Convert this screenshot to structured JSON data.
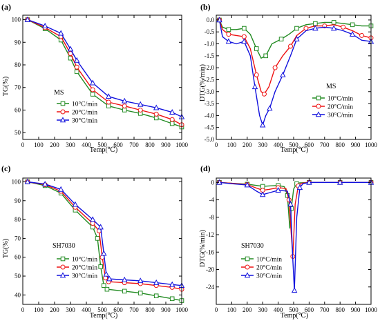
{
  "chart_data": [
    {
      "panel": "(a)",
      "type": "line",
      "sample_label": "MS",
      "xlabel": "Temp(℃)",
      "ylabel": "TG(%)",
      "xlim": [
        0,
        1000
      ],
      "ylim": [
        47,
        102
      ],
      "x_ticks": [
        0,
        100,
        200,
        300,
        400,
        500,
        600,
        700,
        800,
        900,
        1000
      ],
      "y_ticks": [
        50,
        60,
        70,
        80,
        90,
        100
      ],
      "legend": "center-left",
      "series": [
        {
          "name": "10°C/min",
          "color": "#228B22",
          "marker": "square",
          "x": [
            30,
            140,
            240,
            300,
            340,
            440,
            540,
            640,
            740,
            840,
            940,
            1000
          ],
          "y": [
            100,
            96,
            91,
            83,
            77,
            67,
            61.8,
            60,
            58.5,
            56.5,
            54,
            52.5
          ]
        },
        {
          "name": "20°C/min",
          "color": "#ee1111",
          "marker": "circle",
          "x": [
            30,
            140,
            240,
            300,
            340,
            440,
            540,
            640,
            740,
            840,
            940,
            1000
          ],
          "y": [
            100,
            96.5,
            92.5,
            85,
            79,
            69,
            63.5,
            61.8,
            60,
            58.2,
            55.8,
            53.5
          ]
        },
        {
          "name": "30°C/min",
          "color": "#1111dd",
          "marker": "triangle",
          "x": [
            30,
            140,
            240,
            300,
            340,
            440,
            540,
            640,
            740,
            840,
            940,
            1000
          ],
          "y": [
            100,
            97.2,
            94,
            87,
            82,
            72,
            66,
            64,
            62.5,
            61,
            59,
            57
          ]
        }
      ]
    },
    {
      "panel": "(b)",
      "type": "line",
      "sample_label": "MS",
      "xlabel": "Temp(℃)",
      "ylabel": "DTG(%/min)",
      "xlim": [
        0,
        1000
      ],
      "ylim": [
        -5.0,
        0.2
      ],
      "x_ticks": [
        0,
        100,
        200,
        300,
        400,
        500,
        600,
        700,
        800,
        900,
        1000
      ],
      "y_ticks": [
        0.0,
        -0.5,
        -1.0,
        -1.5,
        -2.0,
        -2.5,
        -3.0,
        -3.5,
        -4.0,
        -4.5,
        -5.0
      ],
      "legend": "center-right",
      "series": [
        {
          "name": "10°C/min",
          "color": "#228B22",
          "marker": "square",
          "x": [
            20,
            40,
            80,
            130,
            180,
            220,
            260,
            290,
            320,
            360,
            420,
            470,
            520,
            580,
            640,
            700,
            760,
            820,
            880,
            940,
            1000
          ],
          "y": [
            0,
            -0.3,
            -0.4,
            -0.4,
            -0.35,
            -0.6,
            -1.2,
            -1.6,
            -1.5,
            -1.0,
            -0.8,
            -0.6,
            -0.35,
            -0.2,
            -0.15,
            -0.1,
            -0.1,
            -0.15,
            -0.2,
            -0.25,
            -0.25
          ]
        },
        {
          "name": "20°C/min",
          "color": "#ee1111",
          "marker": "circle",
          "x": [
            20,
            40,
            80,
            130,
            180,
            220,
            260,
            290,
            310,
            340,
            380,
            430,
            480,
            520,
            580,
            640,
            700,
            760,
            820,
            880,
            940,
            1000
          ],
          "y": [
            0,
            -0.4,
            -0.6,
            -0.65,
            -0.7,
            -1.2,
            -2.3,
            -3.0,
            -3.1,
            -2.8,
            -2.0,
            -1.5,
            -1.1,
            -0.65,
            -0.35,
            -0.25,
            -0.25,
            -0.2,
            -0.3,
            -0.45,
            -0.65,
            -0.75
          ]
        },
        {
          "name": "30°C/min",
          "color": "#1111dd",
          "marker": "triangle",
          "x": [
            20,
            40,
            80,
            130,
            180,
            220,
            250,
            280,
            300,
            320,
            345,
            380,
            430,
            480,
            520,
            580,
            640,
            700,
            760,
            820,
            880,
            940,
            1000
          ],
          "y": [
            0,
            -0.7,
            -0.9,
            -1.0,
            -0.9,
            -1.5,
            -2.8,
            -4.0,
            -4.4,
            -4.0,
            -3.7,
            -3.0,
            -2.3,
            -1.5,
            -0.8,
            -0.45,
            -0.35,
            -0.3,
            -0.35,
            -0.45,
            -0.6,
            -0.85,
            -0.9
          ]
        }
      ]
    },
    {
      "panel": "(c)",
      "type": "line",
      "sample_label": "SH7030",
      "xlabel": "Temp(℃)",
      "ylabel": "TG(%)",
      "xlim": [
        0,
        1000
      ],
      "ylim": [
        35,
        102
      ],
      "x_ticks": [
        0,
        100,
        200,
        300,
        400,
        500,
        600,
        700,
        800,
        900,
        1000
      ],
      "y_ticks": [
        40,
        50,
        60,
        70,
        80,
        90,
        100
      ],
      "legend": "bottom-left",
      "series": [
        {
          "name": "10°C/min",
          "color": "#228B22",
          "marker": "square",
          "x": [
            30,
            140,
            240,
            330,
            440,
            470,
            490,
            510,
            530,
            640,
            740,
            840,
            940,
            1000
          ],
          "y": [
            100,
            98,
            94,
            85,
            76,
            70,
            55,
            45,
            43,
            42,
            41,
            39.5,
            38,
            37
          ]
        },
        {
          "name": "20°C/min",
          "color": "#ee1111",
          "marker": "circle",
          "x": [
            30,
            140,
            240,
            330,
            440,
            480,
            500,
            520,
            540,
            640,
            740,
            840,
            940,
            1000
          ],
          "y": [
            100,
            98.5,
            95,
            86.5,
            78,
            74,
            60,
            49,
            47,
            46.5,
            46,
            45,
            44,
            43
          ]
        },
        {
          "name": "30°C/min",
          "color": "#1111dd",
          "marker": "triangle",
          "x": [
            30,
            140,
            240,
            330,
            440,
            490,
            510,
            525,
            545,
            640,
            740,
            840,
            940,
            1000
          ],
          "y": [
            100,
            98.8,
            96,
            88,
            80,
            76,
            62,
            51,
            48.5,
            48,
            47.5,
            46.5,
            45.5,
            45
          ]
        }
      ]
    },
    {
      "panel": "(d)",
      "type": "line",
      "sample_label": "SH7030",
      "xlabel": "Temp(℃)",
      "ylabel": "DTG(%/min)",
      "xlim": [
        0,
        1000
      ],
      "ylim": [
        -28,
        1
      ],
      "x_ticks": [
        0,
        100,
        200,
        300,
        400,
        500,
        600,
        700,
        800,
        900,
        1000
      ],
      "y_ticks": [
        0,
        -4,
        -8,
        -12,
        -16,
        -20,
        -24
      ],
      "legend": "bottom-center",
      "series": [
        {
          "name": "10°C/min",
          "color": "#228B22",
          "marker": "square",
          "x": [
            20,
            100,
            200,
            260,
            300,
            340,
            400,
            440,
            460,
            475,
            485,
            500,
            520,
            540,
            600,
            700,
            800,
            900,
            1000
          ],
          "y": [
            0,
            -0.2,
            -0.4,
            -0.7,
            -0.9,
            -0.8,
            -0.7,
            -1.0,
            -3.0,
            -10.5,
            -6.0,
            -1.5,
            -0.3,
            -0.1,
            0,
            0,
            0,
            0,
            0
          ]
        },
        {
          "name": "20°C/min",
          "color": "#ee1111",
          "marker": "circle",
          "x": [
            20,
            100,
            200,
            260,
            300,
            340,
            400,
            450,
            470,
            485,
            495,
            510,
            530,
            550,
            600,
            700,
            800,
            900,
            1000
          ],
          "y": [
            0,
            -0.2,
            -0.5,
            -1.3,
            -1.8,
            -1.6,
            -1.2,
            -1.4,
            -4.0,
            -12.0,
            -17.0,
            -5.0,
            -0.8,
            -0.2,
            0,
            0,
            0,
            0,
            0
          ]
        },
        {
          "name": "30°C/min",
          "color": "#1111dd",
          "marker": "triangle",
          "x": [
            20,
            100,
            200,
            260,
            300,
            340,
            400,
            460,
            480,
            495,
            505,
            520,
            540,
            560,
            600,
            700,
            800,
            900,
            1000
          ],
          "y": [
            0,
            -0.3,
            -0.6,
            -2.0,
            -2.8,
            -2.4,
            -1.8,
            -2.0,
            -5.0,
            -18.0,
            -24.8,
            -8.0,
            -1.2,
            -0.3,
            0,
            0,
            0,
            0,
            0
          ]
        }
      ]
    }
  ]
}
